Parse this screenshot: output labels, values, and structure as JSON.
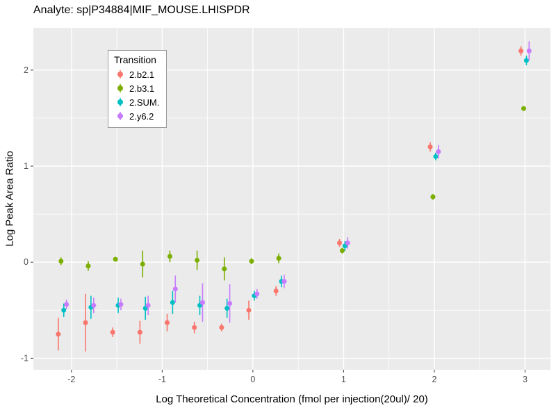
{
  "chart_data": {
    "type": "scatter",
    "title": "Analyte: sp|P34884|MIF_MOUSE.LHISPDR",
    "xlabel": "Log Theoretical Concentration (fmol per injection(20ul)/ 20)",
    "ylabel": "Log Peak Area Ratio",
    "xlim": [
      -2.42,
      3.28
    ],
    "ylim": [
      -1.12,
      2.44
    ],
    "xticks": [
      -2,
      -1,
      0,
      1,
      2,
      3
    ],
    "x_minor": [
      -1.5,
      -0.5,
      0.5,
      1.5,
      2.5
    ],
    "yticks": [
      -1,
      0,
      1,
      2
    ],
    "y_minor": [
      -0.5,
      0.5,
      1.5
    ],
    "grid": true,
    "panel_bg": "#EBEBEB",
    "grid_color": "#FFFFFF",
    "tick_label_color": "#4d4d4d",
    "legend": {
      "title": "Transition",
      "position": "top-left-inside"
    },
    "x": [
      -2.1,
      -1.8,
      -1.5,
      -1.2,
      -0.9,
      -0.6,
      -0.3,
      0,
      0.3,
      1,
      2,
      3
    ],
    "dodge": [
      -0.045,
      -0.015,
      0.015,
      0.045
    ],
    "series": [
      {
        "name": "2.b2.1",
        "color": "#F8766D",
        "values": [
          -0.75,
          -0.63,
          -0.73,
          -0.73,
          -0.63,
          -0.68,
          -0.68,
          -0.5,
          -0.3,
          0.2,
          1.2,
          2.2
        ],
        "err": [
          0.17,
          0.3,
          0.05,
          0.12,
          0.09,
          0.06,
          0.04,
          0.1,
          0.05,
          0.04,
          0.05,
          0.05
        ]
      },
      {
        "name": "2.b3.1",
        "color": "#7CAE00",
        "values": [
          0.01,
          -0.04,
          0.03,
          -0.02,
          0.06,
          0.02,
          -0.07,
          0.01,
          0.04,
          0.12,
          0.68,
          1.6
        ],
        "err": [
          0.04,
          0.05,
          0.02,
          0.14,
          0.06,
          0.1,
          0.12,
          0.03,
          0.05,
          0.03,
          0.03,
          0.02
        ]
      },
      {
        "name": "2.SUM.",
        "color": "#00BFC4",
        "values": [
          -0.5,
          -0.47,
          -0.45,
          -0.48,
          -0.42,
          -0.45,
          -0.48,
          -0.35,
          -0.2,
          0.17,
          1.1,
          2.1
        ],
        "err": [
          0.07,
          0.12,
          0.08,
          0.12,
          0.12,
          0.1,
          0.1,
          0.05,
          0.06,
          0.05,
          0.04,
          0.05
        ]
      },
      {
        "name": "2.y6.2",
        "color": "#C77CFF",
        "values": [
          -0.44,
          -0.45,
          -0.44,
          -0.45,
          -0.28,
          -0.42,
          -0.43,
          -0.33,
          -0.2,
          0.2,
          1.15,
          2.2
        ],
        "err": [
          0.05,
          0.08,
          0.06,
          0.1,
          0.14,
          0.2,
          0.2,
          0.05,
          0.07,
          0.06,
          0.07,
          0.1
        ]
      }
    ]
  }
}
